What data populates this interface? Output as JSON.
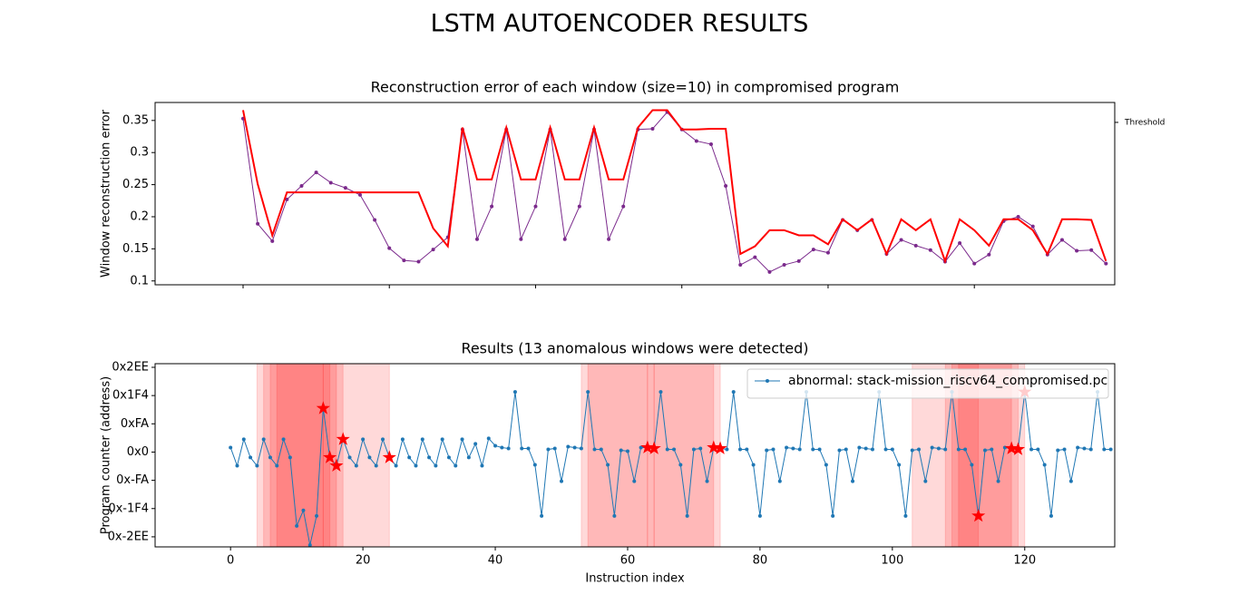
{
  "title": "LSTM AUTOENCODER RESULTS",
  "chart_data": [
    {
      "type": "line",
      "title": "Reconstruction error of each window (size=10) in compromised program",
      "ylabel": "Window reconstruction error",
      "x": [
        0,
        2,
        4,
        6,
        8,
        10,
        12,
        14,
        16,
        18,
        20,
        22,
        24,
        26,
        28,
        30,
        32,
        34,
        36,
        38,
        40,
        42,
        44,
        46,
        48,
        50,
        52,
        54,
        56,
        58,
        60,
        62,
        64,
        66,
        68,
        70,
        72,
        74,
        76,
        78,
        80,
        82,
        84,
        86,
        88,
        90,
        92,
        94,
        96,
        98,
        100,
        102,
        104,
        106,
        108,
        110,
        112,
        114,
        116,
        118
      ],
      "series": [
        {
          "color": "#7b2a8c",
          "marker": true,
          "width": 1,
          "values": [
            0.353,
            0.189,
            0.162,
            0.227,
            0.248,
            0.269,
            0.253,
            0.245,
            0.234,
            0.195,
            0.151,
            0.132,
            0.13,
            0.149,
            0.168,
            0.336,
            0.165,
            0.216,
            0.336,
            0.165,
            0.216,
            0.336,
            0.165,
            0.216,
            0.336,
            0.165,
            0.216,
            0.336,
            0.337,
            0.363,
            0.336,
            0.318,
            0.313,
            0.248,
            0.125,
            0.137,
            0.114,
            0.125,
            0.131,
            0.149,
            0.144,
            0.195,
            0.179,
            0.195,
            0.142,
            0.164,
            0.155,
            0.148,
            0.13,
            0.159,
            0.127,
            0.141,
            0.193,
            0.2,
            0.185,
            0.141,
            0.164,
            0.147,
            0.148,
            0.127
          ]
        },
        {
          "color": "#ff0000",
          "marker": false,
          "width": 2,
          "values": [
            0.366,
            0.251,
            0.171,
            0.238,
            0.238,
            0.238,
            0.238,
            0.238,
            0.238,
            0.238,
            0.238,
            0.238,
            0.238,
            0.182,
            0.154,
            0.339,
            0.258,
            0.258,
            0.339,
            0.258,
            0.258,
            0.339,
            0.258,
            0.258,
            0.339,
            0.258,
            0.258,
            0.339,
            0.366,
            0.366,
            0.336,
            0.336,
            0.337,
            0.337,
            0.142,
            0.154,
            0.179,
            0.179,
            0.171,
            0.171,
            0.157,
            0.196,
            0.179,
            0.196,
            0.142,
            0.196,
            0.179,
            0.196,
            0.131,
            0.196,
            0.179,
            0.155,
            0.196,
            0.196,
            0.179,
            0.142,
            0.196,
            0.196,
            0.195,
            0.131
          ]
        }
      ],
      "xlim": [
        -12.03,
        119.2
      ],
      "xticks": [
        0,
        20,
        40,
        60,
        80,
        100
      ],
      "xticklabels": false,
      "ylim": [
        0.094,
        0.378
      ],
      "yticks": [
        0.1,
        0.15,
        0.2,
        0.25,
        0.3,
        0.35
      ],
      "y2lim": [
        0.094,
        0.378
      ],
      "y2ticks": [
        {
          "value": 0.347,
          "label": "Threshold"
        }
      ]
    },
    {
      "type": "line",
      "title": "Results (13 anomalous windows were detected)",
      "ylabel": "Program counter (address)",
      "xlabel": "Instruction index",
      "x": [
        0,
        1,
        2,
        3,
        4,
        5,
        6,
        7,
        8,
        9,
        10,
        11,
        12,
        13,
        14,
        15,
        16,
        17,
        18,
        19,
        20,
        21,
        22,
        23,
        24,
        25,
        26,
        27,
        28,
        29,
        30,
        31,
        32,
        33,
        34,
        35,
        36,
        37,
        38,
        39,
        40,
        41,
        42,
        43,
        44,
        45,
        46,
        47,
        48,
        49,
        50,
        51,
        52,
        53,
        54,
        55,
        56,
        57,
        58,
        59,
        60,
        61,
        62,
        63,
        64,
        65,
        66,
        67,
        68,
        69,
        70,
        71,
        72,
        73,
        74,
        75,
        76,
        77,
        78,
        79,
        80,
        81,
        82,
        83,
        84,
        85,
        86,
        87,
        88,
        89,
        90,
        91,
        92,
        93,
        94,
        95,
        96,
        97,
        98,
        99,
        100,
        101,
        102,
        103,
        104,
        105,
        106,
        107,
        108,
        109,
        110,
        111,
        112,
        113,
        114,
        115,
        116,
        117,
        118,
        119,
        120,
        121,
        122,
        123,
        124,
        125,
        126,
        127,
        128,
        129,
        130,
        131,
        132,
        133
      ],
      "series": [
        {
          "name": "abnormal: stack-mission_riscv64_compromised.pc",
          "color": "#1f77b4",
          "marker": true,
          "width": 1,
          "values": [
            40,
            -121,
            113,
            -48,
            -121,
            113,
            -48,
            -121,
            113,
            -48,
            -653,
            -516,
            -823,
            -565,
            387,
            -48,
            -121,
            113,
            -48,
            -121,
            113,
            -48,
            -121,
            113,
            -48,
            -121,
            113,
            -48,
            -121,
            113,
            -48,
            -121,
            113,
            -48,
            -121,
            113,
            -48,
            73,
            -121,
            121,
            56,
            40,
            32,
            532,
            32,
            32,
            -113,
            -565,
            24,
            32,
            -258,
            48,
            40,
            32,
            532,
            24,
            24,
            -113,
            -565,
            16,
            8,
            -258,
            40,
            40,
            32,
            532,
            24,
            24,
            -113,
            -565,
            24,
            32,
            -258,
            40,
            32,
            24,
            532,
            24,
            24,
            -113,
            -565,
            16,
            24,
            -258,
            40,
            32,
            24,
            532,
            24,
            24,
            -113,
            -565,
            16,
            24,
            -258,
            40,
            32,
            24,
            532,
            24,
            24,
            -113,
            -565,
            16,
            24,
            -258,
            40,
            32,
            24,
            532,
            24,
            24,
            -113,
            -565,
            16,
            24,
            -258,
            40,
            32,
            24,
            532,
            24,
            24,
            -113,
            -565,
            16,
            24,
            -258,
            40,
            32,
            24,
            532,
            24,
            24
          ]
        }
      ],
      "anomalies": {
        "color": "#ff0000",
        "x": [
          14,
          15,
          16,
          17,
          24,
          63,
          64,
          73,
          74,
          113,
          118,
          119,
          120
        ],
        "values": [
          387,
          -48,
          -121,
          113,
          -48,
          40,
          32,
          40,
          32,
          -565,
          32,
          24,
          532
        ]
      },
      "spans": {
        "color": "#ff0000",
        "opacity": 0.15,
        "ranges": [
          [
            4,
            14
          ],
          [
            5,
            15
          ],
          [
            6,
            16
          ],
          [
            7,
            17
          ],
          [
            14,
            24
          ],
          [
            53,
            63
          ],
          [
            54,
            64
          ],
          [
            63,
            73
          ],
          [
            64,
            74
          ],
          [
            103,
            113
          ],
          [
            108,
            118
          ],
          [
            109,
            119
          ],
          [
            110,
            120
          ]
        ]
      },
      "xlim": [
        -11.4,
        133.6
      ],
      "xticks": [
        0,
        20,
        40,
        60,
        80,
        100,
        120
      ],
      "xticklabels": true,
      "ylim": [
        -839,
        782
      ],
      "yticks": [
        {
          "value": -750,
          "label": "0x-2EE"
        },
        {
          "value": -500,
          "label": "0x-1F4"
        },
        {
          "value": -250,
          "label": "0x-FA"
        },
        {
          "value": 0,
          "label": "0x0"
        },
        {
          "value": 250,
          "label": "0xFA"
        },
        {
          "value": 500,
          "label": "0x1F4"
        },
        {
          "value": 750,
          "label": "0x2EE"
        }
      ],
      "legend": "upper right"
    }
  ]
}
